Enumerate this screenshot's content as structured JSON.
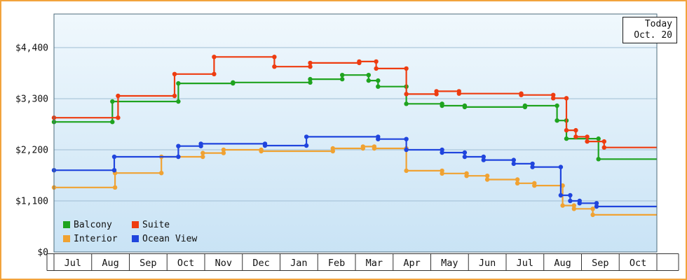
{
  "today_box": {
    "line1": "Today",
    "line2": "Oct. 20"
  },
  "colors": {
    "frame_border": "#f2a33c",
    "plot_bg_top": "#f0f8fd",
    "plot_bg_bottom": "#c9e3f5",
    "grid": "#9fbdd3",
    "plot_border": "#4c6b7b",
    "axis_line": "#333333",
    "text": "#111111"
  },
  "chart_data": {
    "type": "line",
    "subtype": "step",
    "title": "",
    "xlabel": "",
    "ylabel": "",
    "x_unit": "months offset from first July shown",
    "xlim": [
      0,
      16
    ],
    "ylim": [
      0,
      5124
    ],
    "grid": "horizontal",
    "legend_position": "bottom-left",
    "x_axis": {
      "months": [
        "Jul",
        "Aug",
        "Sep",
        "Oct",
        "Nov",
        "Dec",
        "Jan",
        "Feb",
        "Mar",
        "Apr",
        "May",
        "Jun",
        "Jul",
        "Aug",
        "Sep",
        "Oct"
      ]
    },
    "y_axis": {
      "ticks": [
        0,
        1100,
        2200,
        3300,
        4400
      ],
      "tick_labels": [
        "$0",
        "$1,100",
        "$2,200",
        "$3,300",
        "$4,400"
      ]
    },
    "series": [
      {
        "name": "Balcony",
        "color": "#1fa31f",
        "points": [
          [
            0,
            2800
          ],
          [
            1.55,
            3240
          ],
          [
            3.3,
            3630
          ],
          [
            4.75,
            3650
          ],
          [
            6.8,
            3720
          ],
          [
            7.65,
            3810
          ],
          [
            8.35,
            3690
          ],
          [
            8.6,
            3560
          ],
          [
            9.35,
            3190
          ],
          [
            10.3,
            3150
          ],
          [
            10.9,
            3120
          ],
          [
            12.5,
            3150
          ],
          [
            13.35,
            2830
          ],
          [
            13.6,
            2440
          ],
          [
            14.45,
            2000
          ]
        ]
      },
      {
        "name": "Suite",
        "color": "#ee3c10",
        "points": [
          [
            0,
            2890
          ],
          [
            1.7,
            3360
          ],
          [
            3.2,
            3830
          ],
          [
            4.25,
            4200
          ],
          [
            5.85,
            3990
          ],
          [
            6.8,
            4070
          ],
          [
            8.1,
            4100
          ],
          [
            8.55,
            3950
          ],
          [
            9.35,
            3400
          ],
          [
            10.15,
            3460
          ],
          [
            10.75,
            3410
          ],
          [
            12.4,
            3380
          ],
          [
            13.25,
            3310
          ],
          [
            13.6,
            2620
          ],
          [
            13.85,
            2480
          ],
          [
            14.15,
            2380
          ],
          [
            14.6,
            2250
          ]
        ]
      },
      {
        "name": "Interior",
        "color": "#f0a232",
        "points": [
          [
            0,
            1390
          ],
          [
            1.62,
            1700
          ],
          [
            2.85,
            2050
          ],
          [
            3.95,
            2130
          ],
          [
            4.5,
            2200
          ],
          [
            5.5,
            2170
          ],
          [
            7.4,
            2230
          ],
          [
            8.2,
            2270
          ],
          [
            8.5,
            2230
          ],
          [
            9.35,
            1750
          ],
          [
            10.3,
            1690
          ],
          [
            10.95,
            1640
          ],
          [
            11.5,
            1560
          ],
          [
            12.3,
            1480
          ],
          [
            12.75,
            1430
          ],
          [
            13.5,
            1000
          ],
          [
            13.8,
            930
          ],
          [
            14.3,
            800
          ]
        ]
      },
      {
        "name": "Ocean View",
        "color": "#2045dd",
        "points": [
          [
            0,
            1760
          ],
          [
            1.6,
            2050
          ],
          [
            3.3,
            2280
          ],
          [
            3.9,
            2330
          ],
          [
            5.6,
            2290
          ],
          [
            6.7,
            2480
          ],
          [
            8.6,
            2430
          ],
          [
            9.35,
            2200
          ],
          [
            10.3,
            2140
          ],
          [
            10.9,
            2050
          ],
          [
            11.4,
            1980
          ],
          [
            12.2,
            1900
          ],
          [
            12.7,
            1830
          ],
          [
            13.45,
            1220
          ],
          [
            13.7,
            1100
          ],
          [
            13.95,
            1050
          ],
          [
            14.4,
            980
          ]
        ]
      }
    ]
  }
}
